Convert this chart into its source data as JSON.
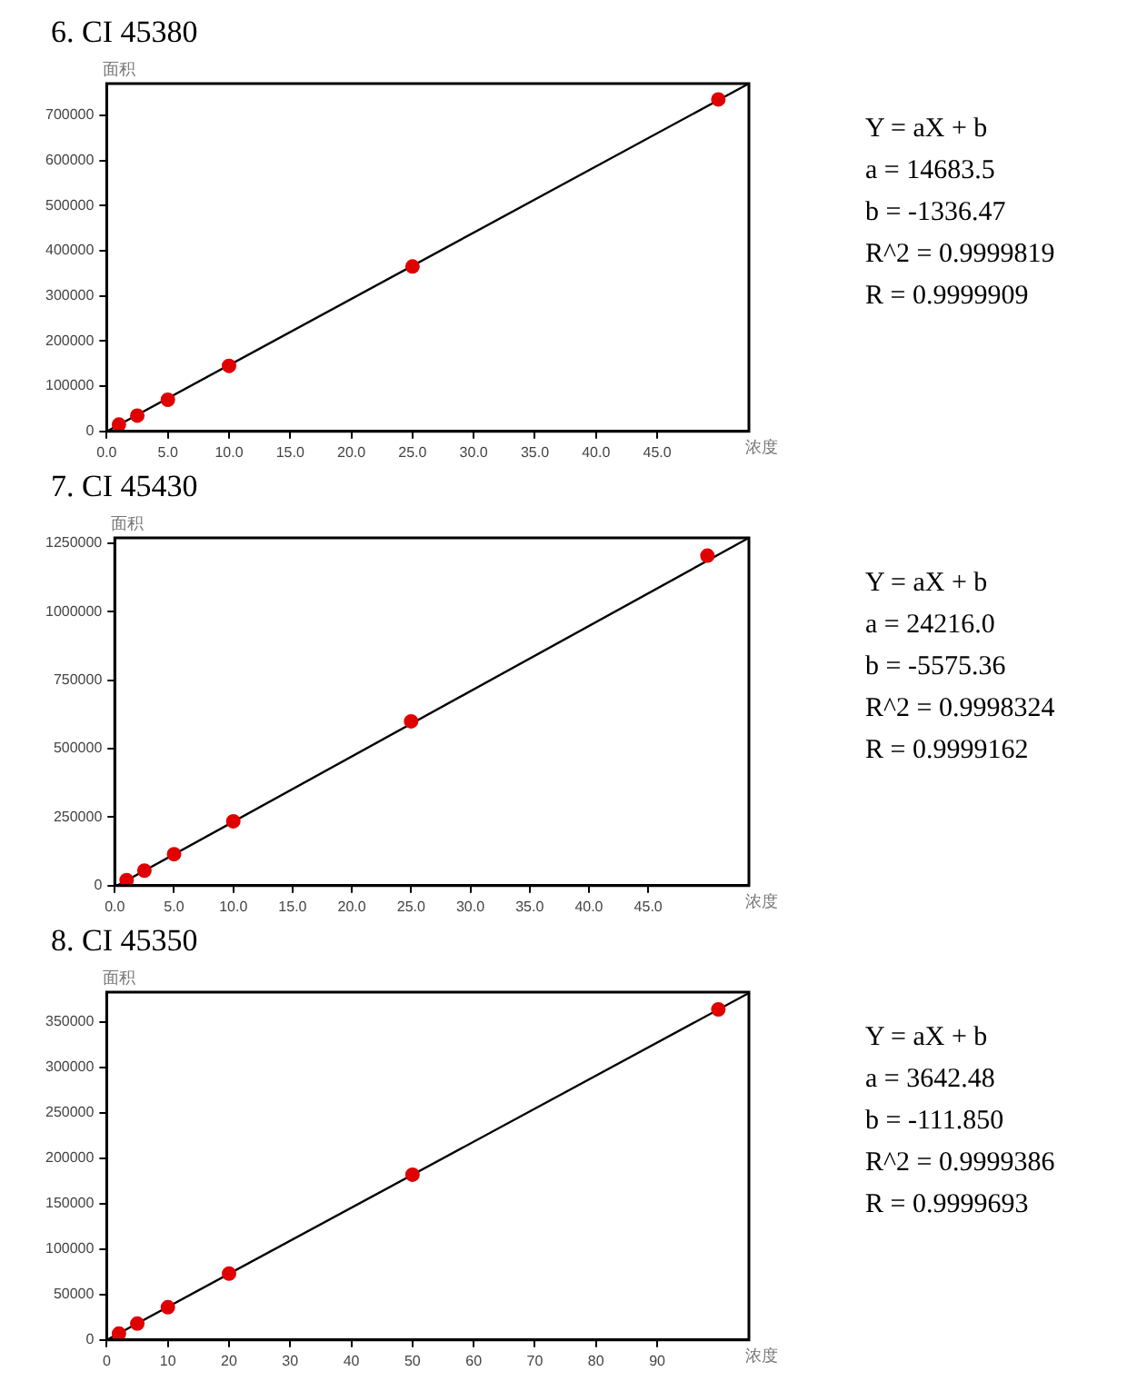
{
  "chart_data": [
    {
      "type": "scatter",
      "title": "6.  CI 45380",
      "xlabel": "浓度",
      "ylabel": "面积",
      "x": [
        1,
        2.5,
        5,
        10,
        25,
        50
      ],
      "values": [
        15000,
        35000,
        70000,
        145000,
        365000,
        735000
      ],
      "color": "#e00000",
      "marker": "circle",
      "xlim": [
        0,
        52.5
      ],
      "ylim": [
        0,
        770000
      ],
      "xticks": [
        {
          "value": 0,
          "label": "0.0"
        },
        {
          "value": 5,
          "label": "5.0"
        },
        {
          "value": 10,
          "label": "10.0"
        },
        {
          "value": 15,
          "label": "15.0"
        },
        {
          "value": 20,
          "label": "20.0"
        },
        {
          "value": 25,
          "label": "25.0"
        },
        {
          "value": 30,
          "label": "30.0"
        },
        {
          "value": 35,
          "label": "35.0"
        },
        {
          "value": 40,
          "label": "40.0"
        },
        {
          "value": 45,
          "label": "45.0"
        }
      ],
      "yticks": [
        0,
        100000,
        200000,
        300000,
        400000,
        500000,
        600000,
        700000
      ],
      "grid": false,
      "series": [
        {
          "type": "line",
          "color": "#000000",
          "marker": "none",
          "x": [
            0,
            52.5
          ],
          "values": [
            0,
            770000
          ]
        }
      ],
      "annotations": [
        "Y = aX + b",
        "a = 14683.5",
        "b = -1336.47",
        "R^2 = 0.9999819",
        "R = 0.9999909"
      ]
    },
    {
      "type": "scatter",
      "title": "7.  CI 45430",
      "xlabel": "浓度",
      "ylabel": "面积",
      "x": [
        1,
        2.5,
        5,
        10,
        25,
        50
      ],
      "values": [
        20000,
        55000,
        115000,
        235000,
        600000,
        1205000
      ],
      "color": "#e00000",
      "marker": "circle",
      "xlim": [
        0,
        53.5
      ],
      "ylim": [
        0,
        1270000
      ],
      "xticks": [
        {
          "value": 0,
          "label": "0.0"
        },
        {
          "value": 5,
          "label": "5.0"
        },
        {
          "value": 10,
          "label": "10.0"
        },
        {
          "value": 15,
          "label": "15.0"
        },
        {
          "value": 20,
          "label": "20.0"
        },
        {
          "value": 25,
          "label": "25.0"
        },
        {
          "value": 30,
          "label": "30.0"
        },
        {
          "value": 35,
          "label": "35.0"
        },
        {
          "value": 40,
          "label": "40.0"
        },
        {
          "value": 45,
          "label": "45.0"
        }
      ],
      "yticks": [
        0,
        250000,
        500000,
        750000,
        1000000,
        1250000
      ],
      "grid": false,
      "series": [
        {
          "type": "line",
          "color": "#000000",
          "marker": "none",
          "x": [
            0.2,
            53.5
          ],
          "values": [
            0,
            1270000
          ]
        }
      ],
      "annotations": [
        "Y = aX + b",
        "a = 24216.0",
        "b = -5575.36",
        "R^2 = 0.9998324",
        "R = 0.9999162"
      ]
    },
    {
      "type": "scatter",
      "title": "8.  CI 45350",
      "xlabel": "浓度",
      "ylabel": "面积",
      "x": [
        2,
        5,
        10,
        20,
        50,
        100
      ],
      "values": [
        7000,
        18000,
        36000,
        73000,
        182000,
        364000
      ],
      "color": "#e00000",
      "marker": "circle",
      "xlim": [
        0,
        105
      ],
      "ylim": [
        0,
        383000
      ],
      "xticks": [
        0,
        10,
        20,
        30,
        40,
        50,
        60,
        70,
        80,
        90
      ],
      "yticks": [
        0,
        50000,
        100000,
        150000,
        200000,
        250000,
        300000,
        350000
      ],
      "grid": false,
      "series": [
        {
          "type": "line",
          "color": "#000000",
          "marker": "none",
          "x": [
            0,
            105
          ],
          "values": [
            0,
            382000
          ]
        }
      ],
      "annotations": [
        "Y = aX + b",
        "a = 3642.48",
        "b = -111.850",
        "R^2 = 0.9999386",
        "R = 0.9999693"
      ]
    }
  ]
}
